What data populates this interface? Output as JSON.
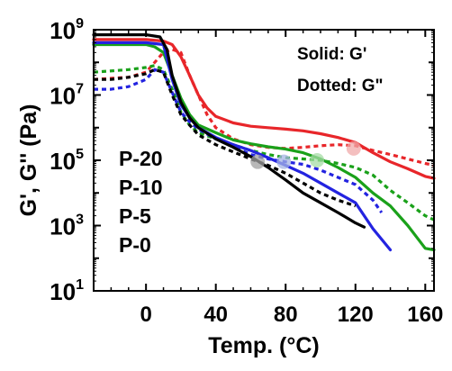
{
  "chart_data": {
    "type": "line",
    "xlabel": "Temp. (°C)",
    "ylabel": "G', G'' (Pa)",
    "xlim": [
      -30,
      165
    ],
    "ylim": [
      10,
      1000000000
    ],
    "y_scale": "log",
    "x_ticks": [
      0,
      40,
      80,
      120,
      160
    ],
    "y_ticks": [
      {
        "value": 10,
        "base": "10",
        "exp": "1"
      },
      {
        "value": 1000,
        "base": "10",
        "exp": "3"
      },
      {
        "value": 100000,
        "base": "10",
        "exp": "5"
      },
      {
        "value": 10000000,
        "base": "10",
        "exp": "7"
      },
      {
        "value": 1000000000,
        "base": "10",
        "exp": "9"
      }
    ],
    "annotations": [
      "Solid: G'",
      "Dotted: G\""
    ],
    "series": [
      {
        "name": "P-20",
        "color": "#e8262a",
        "style": "solid",
        "points": [
          [
            -30,
            500000000
          ],
          [
            0,
            500000000
          ],
          [
            10,
            450000000
          ],
          [
            15,
            350000000
          ],
          [
            20,
            150000000
          ],
          [
            25,
            40000000
          ],
          [
            30,
            10000000
          ],
          [
            35,
            4000000
          ],
          [
            40,
            2200000
          ],
          [
            50,
            1400000
          ],
          [
            60,
            1100000
          ],
          [
            70,
            1000000
          ],
          [
            80,
            900000
          ],
          [
            90,
            800000
          ],
          [
            100,
            650000
          ],
          [
            110,
            500000
          ],
          [
            120,
            350000
          ],
          [
            130,
            170000
          ],
          [
            140,
            90000
          ],
          [
            150,
            55000
          ],
          [
            160,
            32000
          ],
          [
            165,
            28000
          ]
        ]
      },
      {
        "name": "P-20",
        "color": "#e8262a",
        "style": "dotted",
        "points": [
          [
            -30,
            30000000
          ],
          [
            -10,
            35000000
          ],
          [
            0,
            50000000
          ],
          [
            10,
            200000000
          ],
          [
            15,
            250000000
          ],
          [
            20,
            200000000
          ],
          [
            25,
            40000000
          ],
          [
            30,
            10000000
          ],
          [
            35,
            2500000
          ],
          [
            40,
            1000000
          ],
          [
            50,
            450000
          ],
          [
            60,
            300000
          ],
          [
            70,
            250000
          ],
          [
            80,
            230000
          ],
          [
            90,
            250000
          ],
          [
            100,
            280000
          ],
          [
            110,
            300000
          ],
          [
            120,
            280000
          ],
          [
            130,
            200000
          ],
          [
            140,
            150000
          ],
          [
            150,
            110000
          ],
          [
            160,
            80000
          ],
          [
            165,
            70000
          ]
        ]
      },
      {
        "name": "P-10",
        "color": "#1aa11a",
        "style": "solid",
        "points": [
          [
            -30,
            350000000
          ],
          [
            0,
            350000000
          ],
          [
            5,
            300000000
          ],
          [
            10,
            200000000
          ],
          [
            15,
            40000000
          ],
          [
            20,
            8000000
          ],
          [
            25,
            2500000
          ],
          [
            30,
            1200000
          ],
          [
            40,
            700000
          ],
          [
            50,
            420000
          ],
          [
            60,
            320000
          ],
          [
            70,
            260000
          ],
          [
            80,
            220000
          ],
          [
            90,
            170000
          ],
          [
            100,
            110000
          ],
          [
            110,
            60000
          ],
          [
            120,
            30000
          ],
          [
            130,
            10000
          ],
          [
            140,
            4000
          ],
          [
            150,
            1000
          ],
          [
            160,
            200
          ],
          [
            165,
            180
          ]
        ]
      },
      {
        "name": "P-10",
        "color": "#1aa11a",
        "style": "dotted",
        "points": [
          [
            -30,
            50000000
          ],
          [
            -10,
            60000000
          ],
          [
            0,
            70000000
          ],
          [
            5,
            80000000
          ],
          [
            10,
            60000000
          ],
          [
            15,
            15000000
          ],
          [
            20,
            3000000
          ],
          [
            25,
            1200000
          ],
          [
            30,
            700000
          ],
          [
            40,
            450000
          ],
          [
            50,
            300000
          ],
          [
            60,
            200000
          ],
          [
            70,
            150000
          ],
          [
            80,
            120000
          ],
          [
            90,
            110000
          ],
          [
            100,
            100000
          ],
          [
            110,
            80000
          ],
          [
            120,
            60000
          ],
          [
            130,
            35000
          ],
          [
            140,
            12000
          ],
          [
            150,
            5000
          ],
          [
            160,
            2000
          ],
          [
            165,
            1500
          ]
        ]
      },
      {
        "name": "P-5",
        "color": "#2323e0",
        "style": "solid",
        "points": [
          [
            -30,
            400000000
          ],
          [
            0,
            400000000
          ],
          [
            10,
            350000000
          ],
          [
            15,
            30000000
          ],
          [
            20,
            5000000
          ],
          [
            25,
            2000000
          ],
          [
            30,
            1000000
          ],
          [
            40,
            500000
          ],
          [
            50,
            300000
          ],
          [
            60,
            200000
          ],
          [
            70,
            120000
          ],
          [
            80,
            70000
          ],
          [
            90,
            40000
          ],
          [
            100,
            20000
          ],
          [
            110,
            10000
          ],
          [
            120,
            5000
          ],
          [
            130,
            800
          ],
          [
            140,
            180
          ]
        ]
      },
      {
        "name": "P-5",
        "color": "#2323e0",
        "style": "dotted",
        "points": [
          [
            -30,
            15000000
          ],
          [
            -20,
            15000000
          ],
          [
            -10,
            18000000
          ],
          [
            0,
            30000000
          ],
          [
            5,
            60000000
          ],
          [
            10,
            50000000
          ],
          [
            15,
            12000000
          ],
          [
            20,
            3000000
          ],
          [
            25,
            1500000
          ],
          [
            30,
            900000
          ],
          [
            40,
            450000
          ],
          [
            50,
            260000
          ],
          [
            60,
            150000
          ],
          [
            70,
            110000
          ],
          [
            80,
            90000
          ],
          [
            90,
            75000
          ],
          [
            100,
            50000
          ],
          [
            110,
            30000
          ],
          [
            120,
            18000
          ],
          [
            130,
            6000
          ],
          [
            135,
            2500
          ]
        ]
      },
      {
        "name": "P-0",
        "color": "#000000",
        "style": "solid",
        "points": [
          [
            -30,
            700000000
          ],
          [
            0,
            700000000
          ],
          [
            8,
            600000000
          ],
          [
            12,
            250000000
          ],
          [
            15,
            40000000
          ],
          [
            20,
            6000000
          ],
          [
            25,
            2000000
          ],
          [
            30,
            1000000
          ],
          [
            40,
            450000
          ],
          [
            50,
            250000
          ],
          [
            60,
            130000
          ],
          [
            70,
            60000
          ],
          [
            80,
            25000
          ],
          [
            90,
            10000
          ],
          [
            100,
            5000
          ],
          [
            110,
            2500
          ],
          [
            120,
            1200
          ],
          [
            125,
            900
          ]
        ]
      },
      {
        "name": "P-0",
        "color": "#000000",
        "style": "dotted",
        "points": [
          [
            -30,
            30000000
          ],
          [
            -20,
            30000000
          ],
          [
            -10,
            35000000
          ],
          [
            0,
            45000000
          ],
          [
            5,
            60000000
          ],
          [
            10,
            50000000
          ],
          [
            15,
            10000000
          ],
          [
            20,
            2500000
          ],
          [
            25,
            1200000
          ],
          [
            30,
            600000
          ],
          [
            40,
            300000
          ],
          [
            50,
            180000
          ],
          [
            60,
            110000
          ],
          [
            70,
            70000
          ],
          [
            80,
            40000
          ],
          [
            90,
            20000
          ],
          [
            100,
            10000
          ],
          [
            110,
            6000
          ],
          [
            120,
            4000
          ]
        ]
      }
    ],
    "legend": {
      "placement": "left-middle",
      "entries": [
        {
          "label": "P-20",
          "color": "#e8262a"
        },
        {
          "label": "P-10",
          "color": "#1aa11a"
        },
        {
          "label": "P-5",
          "color": "#2323e0"
        },
        {
          "label": "P-0",
          "color": "#000000"
        }
      ]
    },
    "markers": [
      {
        "x": 64,
        "y": 90000,
        "color": "#a0a0a0"
      },
      {
        "x": 79,
        "y": 90000,
        "color": "#a6b4e4"
      },
      {
        "x": 98,
        "y": 100000,
        "color": "#a6dca6"
      },
      {
        "x": 119,
        "y": 230000,
        "color": "#f0aaaa"
      }
    ]
  }
}
